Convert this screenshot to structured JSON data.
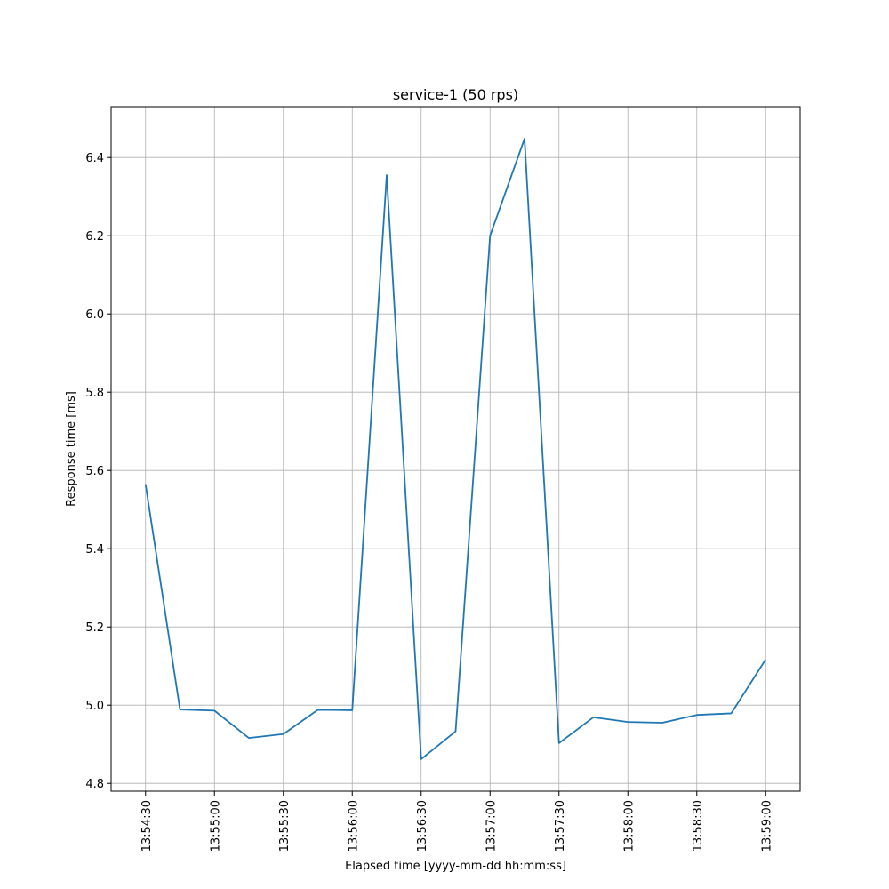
{
  "chart_data": {
    "type": "line",
    "title": "service-1 (50 rps)",
    "xlabel": "Elapsed time [yyyy-mm-dd hh:mm:ss]",
    "ylabel": "Response time [ms]",
    "x": [
      "13:54:30",
      "13:54:45",
      "13:55:00",
      "13:55:15",
      "13:55:30",
      "13:55:45",
      "13:56:00",
      "13:56:15",
      "13:56:30",
      "13:56:45",
      "13:57:00",
      "13:57:15",
      "13:57:30",
      "13:57:45",
      "13:58:00",
      "13:58:15",
      "13:58:30",
      "13:58:45",
      "13:59:00"
    ],
    "series": [
      {
        "values": [
          5.565,
          4.989,
          4.986,
          4.916,
          4.926,
          4.988,
          4.987,
          6.355,
          4.862,
          4.933,
          6.2,
          6.448,
          4.903,
          4.969,
          4.957,
          4.955,
          4.975,
          4.979,
          5.117
        ],
        "color": "#1f77b4"
      }
    ],
    "x_ticks": [
      "13:54:30",
      "13:55:00",
      "13:55:30",
      "13:56:00",
      "13:56:30",
      "13:57:00",
      "13:57:30",
      "13:58:00",
      "13:58:30",
      "13:59:00"
    ],
    "y_ticks": [
      4.8,
      5.0,
      5.2,
      5.4,
      5.6,
      5.8,
      6.0,
      6.2,
      6.4
    ],
    "xlim": [
      "13:54:15",
      "13:59:15"
    ],
    "ylim": [
      4.78,
      6.53
    ],
    "grid": true
  }
}
